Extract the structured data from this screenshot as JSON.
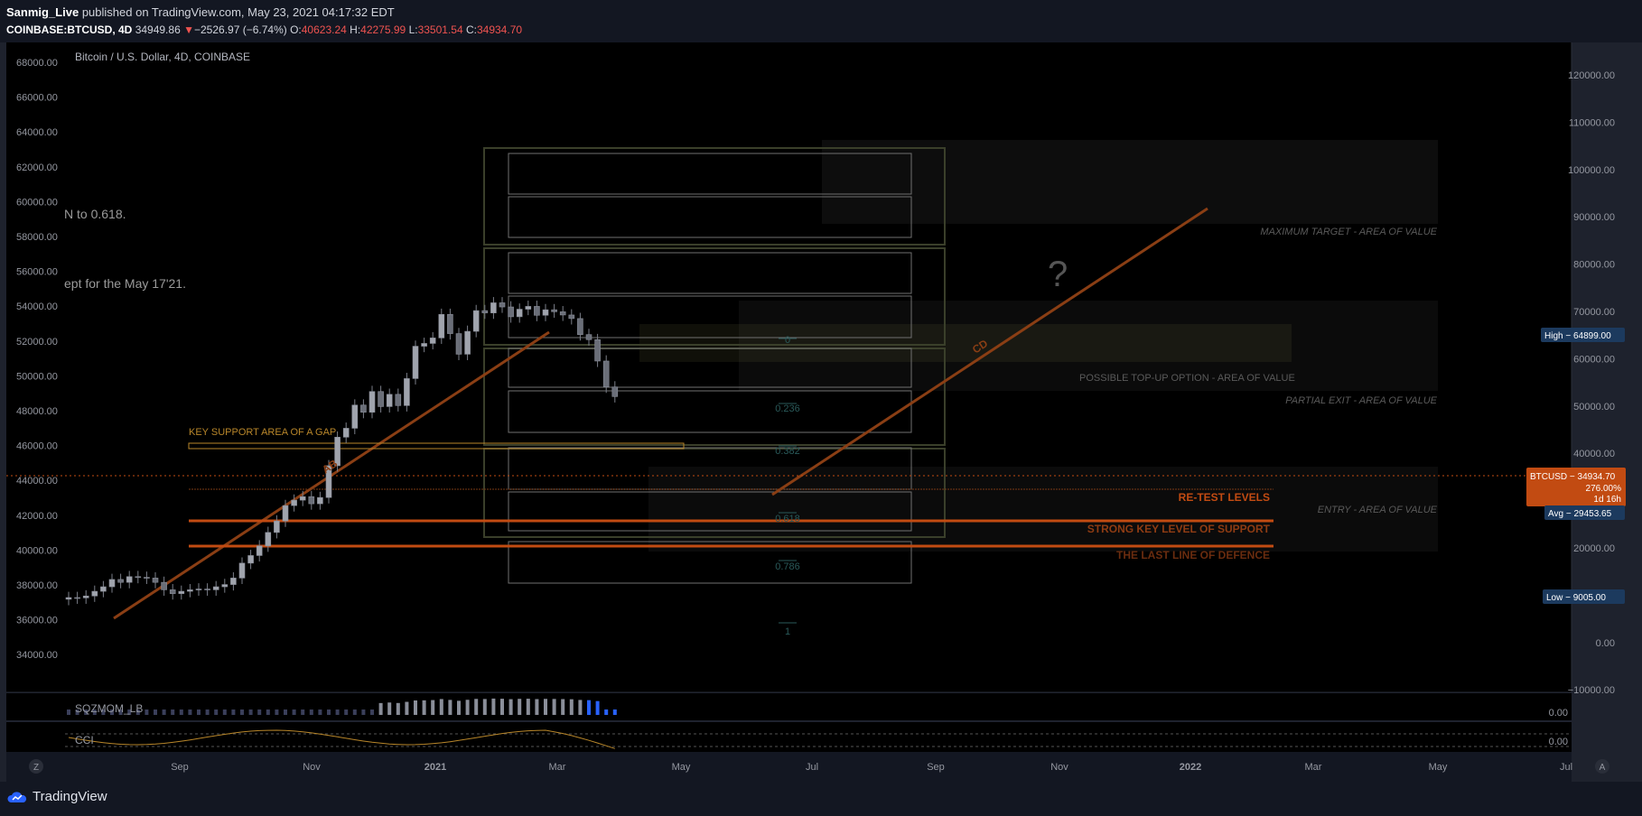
{
  "header": {
    "author": "Sanmig_Live",
    "published_text": "published on TradingView.com, May 23, 2021 04:17:32 EDT",
    "symbol": "COINBASE:BTCUSD, 4D",
    "last": "34949.86",
    "change": "−2526.97 (−6.74%)",
    "o_label": "O:",
    "o_value": "40623.24",
    "h_label": "H:",
    "h_value": "42275.99",
    "l_label": "L:",
    "l_value": "33501.54",
    "c_label": "C:",
    "c_value": "34934.70"
  },
  "footer": {
    "brand": "TradingView"
  },
  "colors": {
    "background": "#000000",
    "bar_background": "#131722",
    "candle": "#8a8e99",
    "orange": "#e0641e",
    "orange_dim": "#7a3a14",
    "fib_teal": "#2a5a5a",
    "price_tag_orange": "#c24b12",
    "price_tag_blue": "#1c3a5e"
  },
  "chart_data": {
    "type": "candlestick",
    "title": "Bitcoin / U.S. Dollar, 4D, COINBASE",
    "x_ticks": [
      "Sep",
      "Nov",
      "2021",
      "Mar",
      "May",
      "Jul",
      "Sep",
      "Nov",
      "2022",
      "Mar",
      "May",
      "Jul"
    ],
    "y_left_ticks": [
      "68000.00",
      "66000.00",
      "64000.00",
      "62000.00",
      "60000.00",
      "58000.00",
      "56000.00",
      "54000.00",
      "52000.00",
      "50000.00",
      "48000.00",
      "46000.00",
      "44000.00",
      "42000.00",
      "40000.00",
      "38000.00",
      "36000.00",
      "34000.00"
    ],
    "y_right_ticks": [
      "120000.00",
      "110000.00",
      "100000.00",
      "90000.00",
      "80000.00",
      "70000.00",
      "60000.00",
      "50000.00",
      "40000.00",
      "30000.00",
      "20000.00",
      "10000.00",
      "0.00",
      "−10000.00"
    ],
    "closes": [
      10500,
      10480,
      10600,
      10900,
      11200,
      11700,
      11500,
      11900,
      11850,
      11800,
      11500,
      11000,
      10750,
      10900,
      11000,
      11050,
      11000,
      11200,
      11350,
      11800,
      12900,
      13500,
      14300,
      15500,
      16600,
      18200,
      18800,
      19200,
      18400,
      19100,
      23100,
      27400,
      28900,
      33200,
      31800,
      36000,
      32900,
      35400,
      33100,
      38900,
      47200,
      48000,
      49600,
      57100,
      50900,
      45000,
      51600,
      58400,
      57600,
      61200,
      59700,
      56300,
      58900,
      59900,
      56800,
      58700,
      58000,
      56900,
      55700,
      50600,
      49100,
      43200,
      37000,
      34935
    ],
    "last_price": "34934.70",
    "annotations": {
      "gap": "KEY SUPPORT AREA OF A GAP",
      "retest": "RE-TEST LEVELS",
      "strong": "STRONG KEY LEVEL OF SUPPORT",
      "lastline": "THE LAST LINE OF DEFENCE",
      "max_target": "MAXIMUM TARGET - AREA OF VALUE",
      "topup": "POSSIBLE TOP-UP OPTION - AREA OF VALUE",
      "partial": "PARTIAL EXIT - AREA OF VALUE",
      "entry": "ENTRY - AREA OF VALUE",
      "question": "?",
      "ab": "AB",
      "cd": "CD",
      "cut1": "N to 0.618.",
      "cut2": "ept for the May 17'21."
    },
    "fib_labels": [
      "0",
      "0.236",
      "0.382",
      "0.618",
      "0.786",
      "1"
    ],
    "price_tags": {
      "high": "High − 64899.00",
      "btc_label": "BTCUSD − 34934.70",
      "btc_pct": "276.00%",
      "btc_time": "1d 16h",
      "avg": "Avg − 29453.65",
      "low": "Low − 9005.00"
    },
    "indicators": {
      "sqz_label": "SQZMOM_LB",
      "sqz_value": "0.00",
      "cci_label": "CCI",
      "cci_value": "0.00"
    },
    "axis_buttons": {
      "left": "Z",
      "right": "A"
    }
  }
}
